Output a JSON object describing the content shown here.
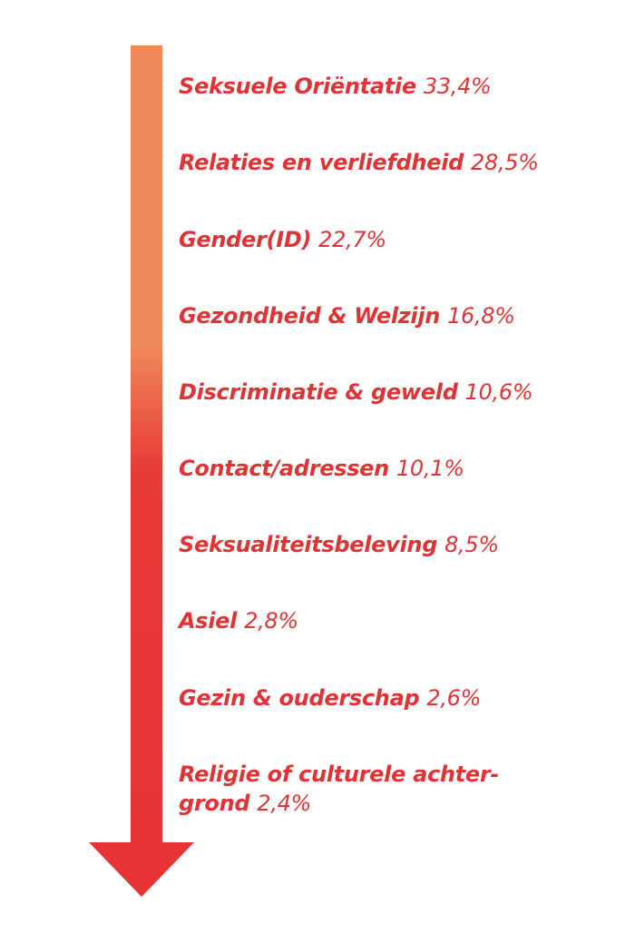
{
  "colors": {
    "arrow_top": "#f08a5a",
    "arrow_bottom": "#e63336",
    "text": "#e03336"
  },
  "items": [
    {
      "label": "Seksuele Oriëntatie",
      "value": "33,4%"
    },
    {
      "label": "Relaties en verliefdheid",
      "value": "28,5%"
    },
    {
      "label": "Gender(ID)",
      "value": "22,7%"
    },
    {
      "label": "Gezondheid & Welzijn",
      "value": "16,8%"
    },
    {
      "label": "Discriminatie & geweld",
      "value": "10,6%"
    },
    {
      "label": "Contact/adressen",
      "value": "10,1%"
    },
    {
      "label": "Seksualiteitsbeleving",
      "value": "8,5%"
    },
    {
      "label": "Asiel",
      "value": "2,8%"
    },
    {
      "label": "Gezin & ouderschap",
      "value": "2,6%"
    },
    {
      "label_line1": "Religie of culturele achter-",
      "label_line2": "grond",
      "value": "2,4%"
    }
  ]
}
